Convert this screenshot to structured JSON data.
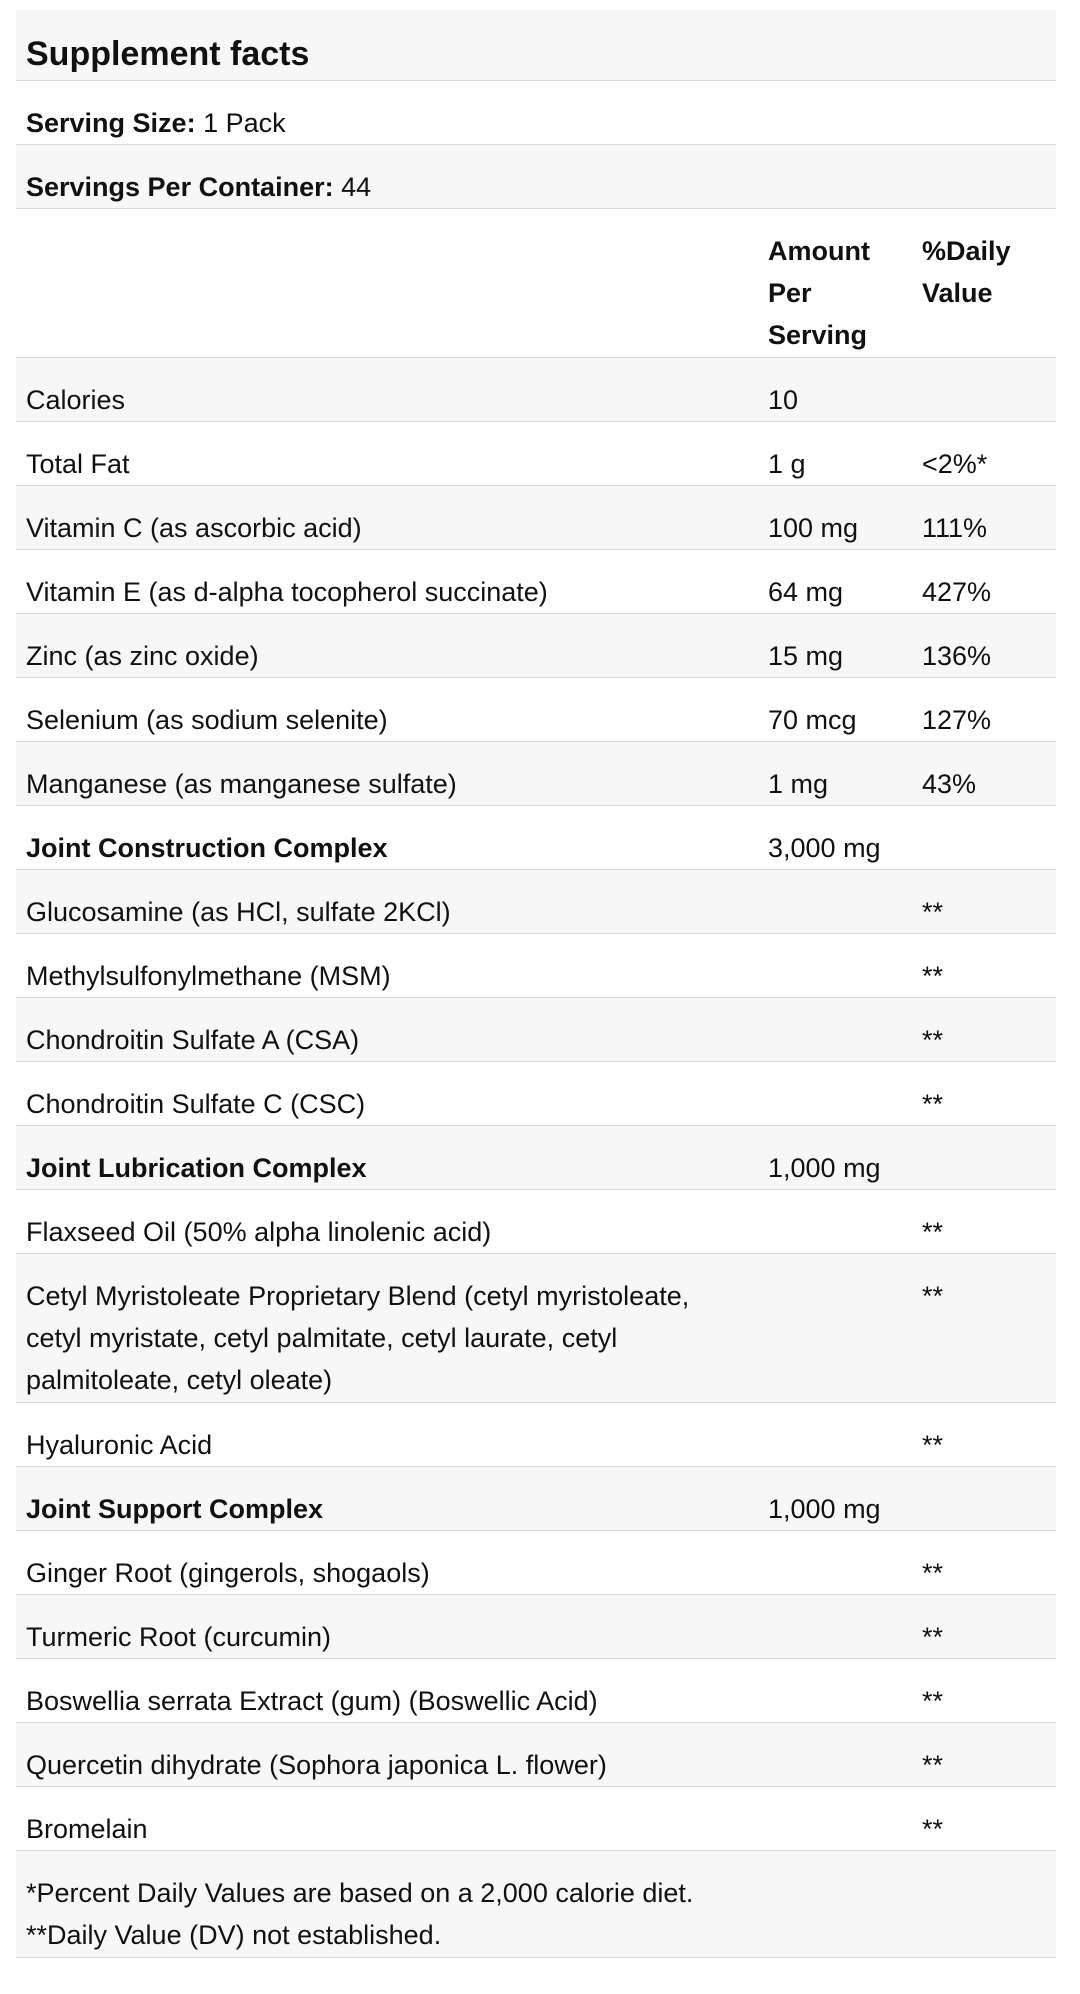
{
  "title": "Supplement facts",
  "serving_size": {
    "label": "Serving Size:",
    "value": "1 Pack"
  },
  "servings_per_container": {
    "label": "Servings Per Container:",
    "value": "44"
  },
  "columns": {
    "amount": "Amount Per Serving",
    "daily_value": "%Daily Value"
  },
  "rows": [
    {
      "name": "Calories",
      "amount": "10",
      "dv": "",
      "bold": false
    },
    {
      "name": "Total Fat",
      "amount": "1 g",
      "dv": "<2%*",
      "bold": false
    },
    {
      "name": "Vitamin C (as ascorbic acid)",
      "amount": "100 mg",
      "dv": "111%",
      "bold": false
    },
    {
      "name": "Vitamin E (as d-alpha tocopherol succinate)",
      "amount": "64 mg",
      "dv": "427%",
      "bold": false
    },
    {
      "name": "Zinc (as zinc oxide)",
      "amount": "15 mg",
      "dv": "136%",
      "bold": false
    },
    {
      "name": "Selenium (as sodium selenite)",
      "amount": "70 mcg",
      "dv": "127%",
      "bold": false
    },
    {
      "name": "Manganese (as manganese sulfate)",
      "amount": "1 mg",
      "dv": "43%",
      "bold": false
    },
    {
      "name": "Joint Construction Complex",
      "amount": "3,000 mg",
      "dv": "",
      "bold": true
    },
    {
      "name": "Glucosamine (as HCl, sulfate 2KCl)",
      "amount": "",
      "dv": "**",
      "bold": false
    },
    {
      "name": "Methylsulfonylmethane (MSM)",
      "amount": "",
      "dv": "**",
      "bold": false
    },
    {
      "name": "Chondroitin Sulfate A (CSA)",
      "amount": "",
      "dv": "**",
      "bold": false
    },
    {
      "name": "Chondroitin Sulfate C (CSC)",
      "amount": "",
      "dv": "**",
      "bold": false
    },
    {
      "name": "Joint Lubrication Complex",
      "amount": "1,000 mg",
      "dv": "",
      "bold": true
    },
    {
      "name": "Flaxseed Oil (50% alpha linolenic acid)",
      "amount": "",
      "dv": "**",
      "bold": false
    },
    {
      "name": "Cetyl Myristoleate Proprietary Blend (cetyl myristoleate, cetyl myristate, cetyl palmitate, cetyl laurate, cetyl palmitoleate, cetyl oleate)",
      "amount": "",
      "dv": "**",
      "bold": false
    },
    {
      "name": "Hyaluronic Acid",
      "amount": "",
      "dv": "**",
      "bold": false
    },
    {
      "name": "Joint Support Complex",
      "amount": "1,000 mg",
      "dv": "",
      "bold": true
    },
    {
      "name": "Ginger Root (gingerols, shogaols)",
      "amount": "",
      "dv": "**",
      "bold": false
    },
    {
      "name": "Turmeric Root (curcumin)",
      "amount": "",
      "dv": "**",
      "bold": false
    },
    {
      "name": "Boswellia serrata Extract (gum) (Boswellic Acid)",
      "amount": "",
      "dv": "**",
      "bold": false
    },
    {
      "name": "Quercetin dihydrate (Sophora japonica L. flower)",
      "amount": "",
      "dv": "**",
      "bold": false
    },
    {
      "name": "Bromelain",
      "amount": "",
      "dv": "**",
      "bold": false
    }
  ],
  "footnotes": [
    "*Percent Daily Values are based on a 2,000 calorie diet.",
    "**Daily Value (DV) not established."
  ]
}
